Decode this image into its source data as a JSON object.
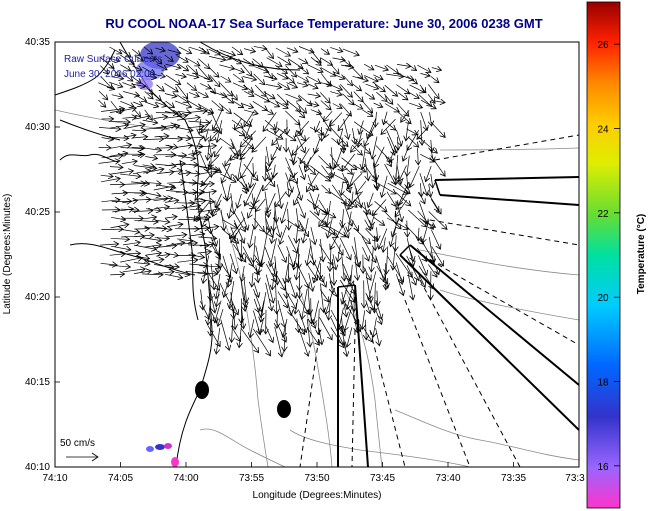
{
  "title": "RU COOL  NOAA-17  Sea Surface Temperature:  June 30, 2006 0238 GMT",
  "legend": {
    "line1": "Raw Surface Currents",
    "line2": "June 30, 2006 02:00"
  },
  "x_axis": {
    "label": "Longitude (Degrees:Minutes)",
    "ticks": [
      "74:10",
      "74:05",
      "74:00",
      "73:55",
      "73:50",
      "73:45",
      "73:40",
      "73:35",
      "73:3"
    ]
  },
  "y_axis": {
    "label": "Latitude (Degrees:Minutes)",
    "ticks": [
      "40:35",
      "40:30",
      "40:25",
      "40:20",
      "40:15",
      "40:10"
    ]
  },
  "colorbar": {
    "label": "Temperature (°C)",
    "ticks": [
      "26",
      "24",
      "22",
      "20",
      "18",
      "16"
    ],
    "range": [
      15,
      27
    ]
  },
  "scale": {
    "label": "50 cm/s"
  },
  "colors": {
    "title": "#00008b",
    "land_contour": "#000000",
    "bathymetry": "#8a8a8a",
    "markers": "#000000"
  }
}
